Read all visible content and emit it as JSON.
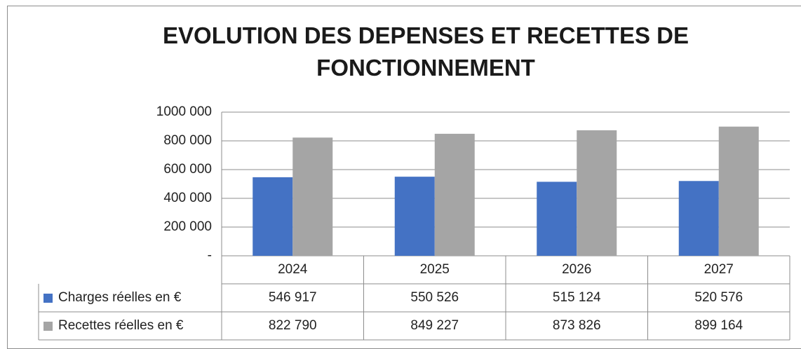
{
  "chart_data": {
    "type": "bar",
    "title": "EVOLUTION DES DEPENSES ET RECETTES DE FONCTIONNEMENT",
    "categories": [
      "2024",
      "2025",
      "2026",
      "2027"
    ],
    "series": [
      {
        "name": "Charges réelles en €",
        "color": "#4472c4",
        "values": [
          546917,
          550526,
          515124,
          520576
        ],
        "value_labels": [
          "546 917",
          "550 526",
          "515 124",
          "520 576"
        ]
      },
      {
        "name": "Recettes réelles en €",
        "color": "#a5a5a5",
        "values": [
          822790,
          849227,
          873826,
          899164
        ],
        "value_labels": [
          "822 790",
          "849 227",
          "873 826",
          "899 164"
        ]
      }
    ],
    "ylim": [
      0,
      1000000
    ],
    "yticks": [
      {
        "value": 0,
        "label": "-"
      },
      {
        "value": 200000,
        "label": "200 000"
      },
      {
        "value": 400000,
        "label": "400 000"
      },
      {
        "value": 600000,
        "label": "600 000"
      },
      {
        "value": 800000,
        "label": "800 000"
      },
      {
        "value": 1000000,
        "label": "1000 000"
      }
    ],
    "grid": true,
    "legend": "table"
  }
}
